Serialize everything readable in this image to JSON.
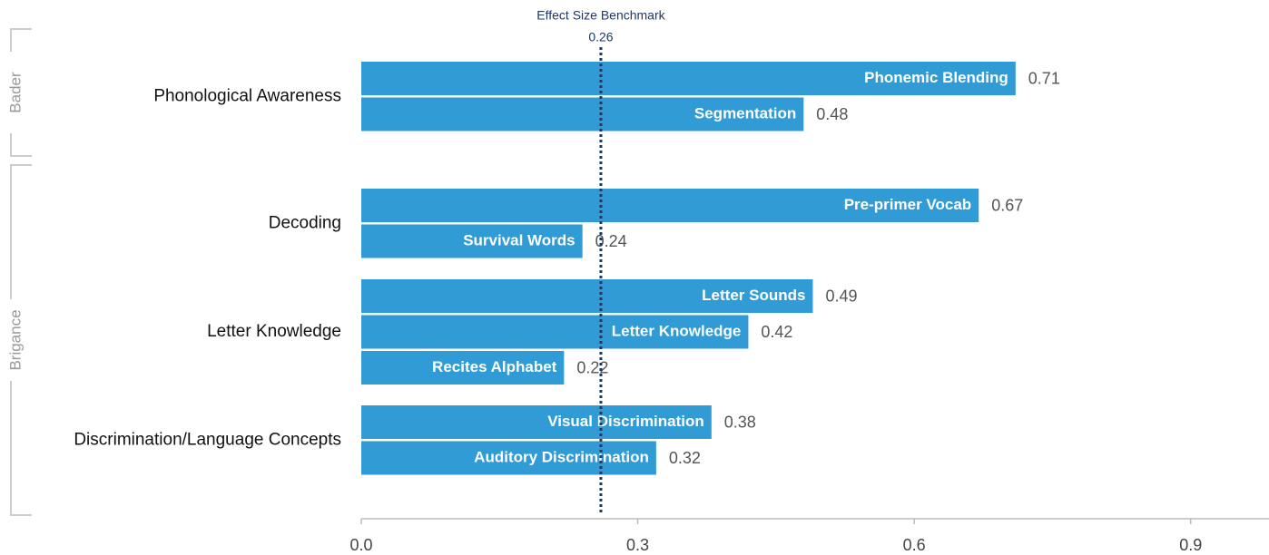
{
  "chart_data": {
    "type": "bar",
    "orientation": "horizontal",
    "color": "#319bd5",
    "brackets": [
      "Bader",
      "Brigance"
    ],
    "groups": [
      {
        "name": "Phonological Awareness",
        "bars": [
          {
            "name": "Phonemic Blending",
            "value": 0.71
          },
          {
            "name": "Segmentation",
            "value": 0.48
          }
        ]
      },
      {
        "name": "Decoding",
        "bars": [
          {
            "name": "Pre-primer Vocab",
            "value": 0.67
          },
          {
            "name": "Survival Words",
            "value": 0.24
          }
        ]
      },
      {
        "name": "Letter Knowledge",
        "bars": [
          {
            "name": "Letter Sounds",
            "value": 0.49
          },
          {
            "name": "Letter Knowledge",
            "value": 0.42
          },
          {
            "name": "Recites Alphabet",
            "value": 0.22
          }
        ]
      },
      {
        "name": "Discrimination/Language Concepts",
        "bars": [
          {
            "name": "Visual Discrimination",
            "value": 0.38
          },
          {
            "name": "Auditory Discrimination",
            "value": 0.32
          }
        ]
      }
    ],
    "benchmark": {
      "label": "Effect Size Benchmark",
      "value": 0.26
    },
    "xlim": [
      0,
      0.985
    ],
    "xticks": [
      {
        "value": 0,
        "label": "0.0"
      },
      0.3,
      0.6,
      0.9
    ]
  }
}
